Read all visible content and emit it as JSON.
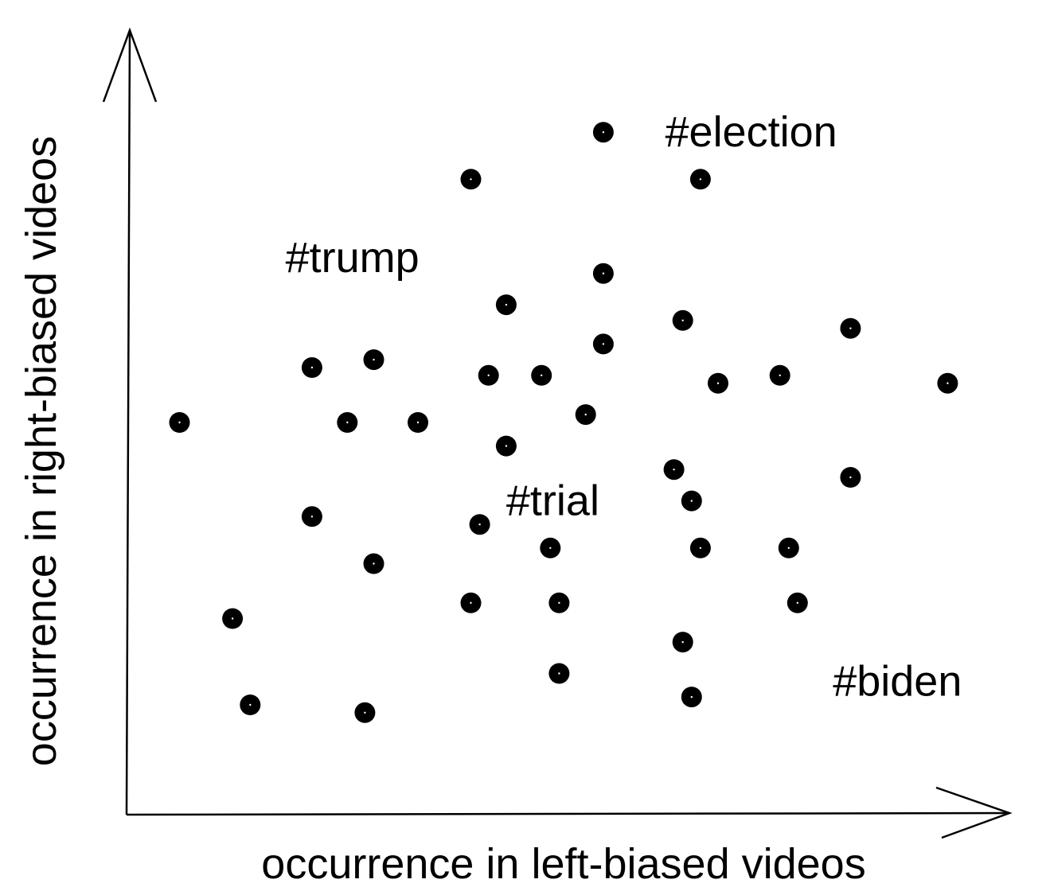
{
  "chart_data": {
    "type": "scatter",
    "xlabel": "occurrence in left-biased videos",
    "ylabel": "occurrence in right-biased videos",
    "grid": false,
    "points": [
      {
        "x": 0.06,
        "y": 0.5
      },
      {
        "x": 0.12,
        "y": 0.25
      },
      {
        "x": 0.14,
        "y": 0.14
      },
      {
        "x": 0.21,
        "y": 0.57
      },
      {
        "x": 0.21,
        "y": 0.38
      },
      {
        "x": 0.25,
        "y": 0.5
      },
      {
        "x": 0.28,
        "y": 0.58
      },
      {
        "x": 0.28,
        "y": 0.32
      },
      {
        "x": 0.27,
        "y": 0.13
      },
      {
        "x": 0.33,
        "y": 0.5
      },
      {
        "x": 0.39,
        "y": 0.81
      },
      {
        "x": 0.41,
        "y": 0.56
      },
      {
        "x": 0.43,
        "y": 0.65
      },
      {
        "x": 0.43,
        "y": 0.47
      },
      {
        "x": 0.4,
        "y": 0.37
      },
      {
        "x": 0.39,
        "y": 0.27
      },
      {
        "x": 0.47,
        "y": 0.56
      },
      {
        "x": 0.48,
        "y": 0.34
      },
      {
        "x": 0.49,
        "y": 0.27
      },
      {
        "x": 0.49,
        "y": 0.18
      },
      {
        "x": 0.52,
        "y": 0.51
      },
      {
        "x": 0.54,
        "y": 0.87
      },
      {
        "x": 0.54,
        "y": 0.69
      },
      {
        "x": 0.54,
        "y": 0.6
      },
      {
        "x": 0.63,
        "y": 0.63
      },
      {
        "x": 0.62,
        "y": 0.44
      },
      {
        "x": 0.64,
        "y": 0.4
      },
      {
        "x": 0.65,
        "y": 0.34
      },
      {
        "x": 0.63,
        "y": 0.22
      },
      {
        "x": 0.64,
        "y": 0.15
      },
      {
        "x": 0.65,
        "y": 0.81
      },
      {
        "x": 0.67,
        "y": 0.55
      },
      {
        "x": 0.74,
        "y": 0.56
      },
      {
        "x": 0.75,
        "y": 0.34
      },
      {
        "x": 0.76,
        "y": 0.27
      },
      {
        "x": 0.82,
        "y": 0.62
      },
      {
        "x": 0.82,
        "y": 0.43
      },
      {
        "x": 0.93,
        "y": 0.55
      }
    ],
    "annotations": [
      {
        "text": "#election",
        "x": 0.61,
        "y": 0.87
      },
      {
        "text": "#trump",
        "x": 0.18,
        "y": 0.71
      },
      {
        "text": "#trial",
        "x": 0.43,
        "y": 0.4
      },
      {
        "text": "#biden",
        "x": 0.8,
        "y": 0.17
      }
    ],
    "xlim": [
      0,
      1
    ],
    "ylim": [
      0,
      1
    ]
  },
  "colors": {
    "ink": "#000000",
    "background": "#ffffff"
  }
}
